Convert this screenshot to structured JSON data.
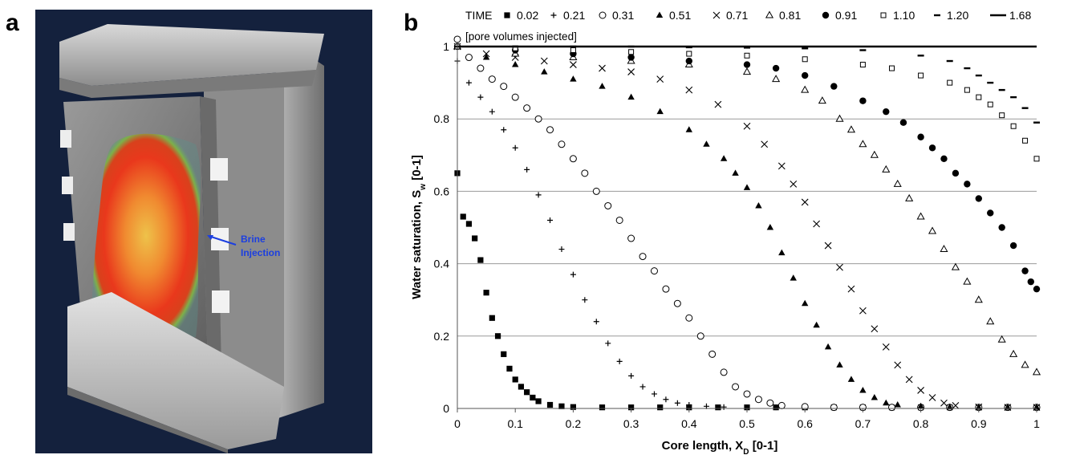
{
  "panel_a": {
    "letter": "a",
    "annotation": [
      "Brine",
      "Injection"
    ],
    "colors": {
      "background": "#14213d",
      "annotation": "#1c3fe0",
      "hot": "#e8321a",
      "warm": "#f2a23a",
      "rim": "#5aa352"
    }
  },
  "panel_b": {
    "letter": "b",
    "legend_title": "TIME",
    "legend_subtitle": "[pore volumes injected]"
  },
  "chart_data": {
    "type": "scatter",
    "xlabel": "Core length, X_D [0-1]",
    "ylabel": "Water saturation, S_w [0-1]",
    "xlim": [
      0,
      1
    ],
    "ylim": [
      0,
      1
    ],
    "xticks": [
      "0",
      "0.1",
      "0.2",
      "0.3",
      "0.4",
      "0.5",
      "0.6",
      "0.7",
      "0.8",
      "0.9",
      "1"
    ],
    "yticks": [
      "0",
      "0.2",
      "0.4",
      "0.6",
      "0.8",
      "1"
    ],
    "grid": "horizontal",
    "legend_position": "top",
    "series": [
      {
        "name": "0.02",
        "marker": "square",
        "points": [
          [
            0,
            0.65
          ],
          [
            0.01,
            0.53
          ],
          [
            0.02,
            0.51
          ],
          [
            0.03,
            0.47
          ],
          [
            0.04,
            0.41
          ],
          [
            0.05,
            0.32
          ],
          [
            0.06,
            0.25
          ],
          [
            0.07,
            0.2
          ],
          [
            0.08,
            0.15
          ],
          [
            0.09,
            0.11
          ],
          [
            0.1,
            0.08
          ],
          [
            0.11,
            0.06
          ],
          [
            0.12,
            0.045
          ],
          [
            0.13,
            0.03
          ],
          [
            0.14,
            0.02
          ],
          [
            0.16,
            0.01
          ],
          [
            0.18,
            0.006
          ],
          [
            0.2,
            0.004
          ],
          [
            0.25,
            0.003
          ],
          [
            0.3,
            0.003
          ],
          [
            0.35,
            0.003
          ],
          [
            0.4,
            0.003
          ],
          [
            0.45,
            0.003
          ],
          [
            0.5,
            0.003
          ],
          [
            0.55,
            0.003
          ],
          [
            0.6,
            0.003
          ],
          [
            0.65,
            0.003
          ],
          [
            0.7,
            0.003
          ],
          [
            0.75,
            0.003
          ],
          [
            0.8,
            0.003
          ],
          [
            0.85,
            0.003
          ],
          [
            0.9,
            0.003
          ],
          [
            0.95,
            0.003
          ],
          [
            1,
            0.003
          ]
        ]
      },
      {
        "name": "0.21",
        "marker": "plus",
        "points": [
          [
            0,
            0.96
          ],
          [
            0.02,
            0.9
          ],
          [
            0.04,
            0.86
          ],
          [
            0.06,
            0.82
          ],
          [
            0.08,
            0.77
          ],
          [
            0.1,
            0.72
          ],
          [
            0.12,
            0.66
          ],
          [
            0.14,
            0.59
          ],
          [
            0.16,
            0.52
          ],
          [
            0.18,
            0.44
          ],
          [
            0.2,
            0.37
          ],
          [
            0.22,
            0.3
          ],
          [
            0.24,
            0.24
          ],
          [
            0.26,
            0.18
          ],
          [
            0.28,
            0.13
          ],
          [
            0.3,
            0.09
          ],
          [
            0.32,
            0.06
          ],
          [
            0.34,
            0.04
          ],
          [
            0.36,
            0.025
          ],
          [
            0.38,
            0.015
          ],
          [
            0.4,
            0.01
          ],
          [
            0.43,
            0.006
          ],
          [
            0.46,
            0.004
          ],
          [
            0.5,
            0.003
          ],
          [
            0.55,
            0.003
          ],
          [
            0.6,
            0.003
          ],
          [
            0.65,
            0.003
          ],
          [
            0.7,
            0.003
          ],
          [
            0.75,
            0.003
          ],
          [
            0.8,
            0.003
          ],
          [
            0.85,
            0.003
          ],
          [
            0.9,
            0.003
          ],
          [
            0.95,
            0.003
          ],
          [
            1,
            0.003
          ]
        ]
      },
      {
        "name": "0.31",
        "marker": "circle-open",
        "points": [
          [
            0,
            1.02
          ],
          [
            0.02,
            0.97
          ],
          [
            0.04,
            0.94
          ],
          [
            0.06,
            0.91
          ],
          [
            0.08,
            0.89
          ],
          [
            0.1,
            0.86
          ],
          [
            0.12,
            0.83
          ],
          [
            0.14,
            0.8
          ],
          [
            0.16,
            0.77
          ],
          [
            0.18,
            0.73
          ],
          [
            0.2,
            0.69
          ],
          [
            0.22,
            0.65
          ],
          [
            0.24,
            0.6
          ],
          [
            0.26,
            0.56
          ],
          [
            0.28,
            0.52
          ],
          [
            0.3,
            0.47
          ],
          [
            0.32,
            0.42
          ],
          [
            0.34,
            0.38
          ],
          [
            0.36,
            0.33
          ],
          [
            0.38,
            0.29
          ],
          [
            0.4,
            0.25
          ],
          [
            0.42,
            0.2
          ],
          [
            0.44,
            0.15
          ],
          [
            0.46,
            0.1
          ],
          [
            0.48,
            0.06
          ],
          [
            0.5,
            0.04
          ],
          [
            0.52,
            0.025
          ],
          [
            0.54,
            0.015
          ],
          [
            0.56,
            0.008
          ],
          [
            0.6,
            0.005
          ],
          [
            0.65,
            0.003
          ],
          [
            0.7,
            0.003
          ],
          [
            0.75,
            0.003
          ],
          [
            0.8,
            0.003
          ],
          [
            0.85,
            0.003
          ],
          [
            0.9,
            0.003
          ],
          [
            0.95,
            0.003
          ],
          [
            1,
            0.003
          ]
        ]
      },
      {
        "name": "0.51",
        "marker": "triangle-filled",
        "points": [
          [
            0,
            1.0
          ],
          [
            0.05,
            0.97
          ],
          [
            0.1,
            0.95
          ],
          [
            0.15,
            0.93
          ],
          [
            0.2,
            0.91
          ],
          [
            0.25,
            0.89
          ],
          [
            0.3,
            0.86
          ],
          [
            0.35,
            0.82
          ],
          [
            0.4,
            0.77
          ],
          [
            0.43,
            0.73
          ],
          [
            0.46,
            0.69
          ],
          [
            0.48,
            0.65
          ],
          [
            0.5,
            0.61
          ],
          [
            0.52,
            0.56
          ],
          [
            0.54,
            0.5
          ],
          [
            0.56,
            0.43
          ],
          [
            0.58,
            0.36
          ],
          [
            0.6,
            0.29
          ],
          [
            0.62,
            0.23
          ],
          [
            0.64,
            0.17
          ],
          [
            0.66,
            0.12
          ],
          [
            0.68,
            0.08
          ],
          [
            0.7,
            0.05
          ],
          [
            0.72,
            0.03
          ],
          [
            0.74,
            0.015
          ],
          [
            0.76,
            0.01
          ],
          [
            0.8,
            0.006
          ],
          [
            0.85,
            0.004
          ],
          [
            0.9,
            0.003
          ],
          [
            0.95,
            0.003
          ],
          [
            1,
            0.003
          ]
        ]
      },
      {
        "name": "0.71",
        "marker": "x",
        "points": [
          [
            0,
            1.0
          ],
          [
            0.05,
            0.98
          ],
          [
            0.1,
            0.97
          ],
          [
            0.15,
            0.96
          ],
          [
            0.2,
            0.95
          ],
          [
            0.25,
            0.94
          ],
          [
            0.3,
            0.93
          ],
          [
            0.35,
            0.91
          ],
          [
            0.4,
            0.88
          ],
          [
            0.45,
            0.84
          ],
          [
            0.5,
            0.78
          ],
          [
            0.53,
            0.73
          ],
          [
            0.56,
            0.67
          ],
          [
            0.58,
            0.62
          ],
          [
            0.6,
            0.57
          ],
          [
            0.62,
            0.51
          ],
          [
            0.64,
            0.45
          ],
          [
            0.66,
            0.39
          ],
          [
            0.68,
            0.33
          ],
          [
            0.7,
            0.27
          ],
          [
            0.72,
            0.22
          ],
          [
            0.74,
            0.17
          ],
          [
            0.76,
            0.12
          ],
          [
            0.78,
            0.08
          ],
          [
            0.8,
            0.05
          ],
          [
            0.82,
            0.03
          ],
          [
            0.84,
            0.015
          ],
          [
            0.86,
            0.008
          ],
          [
            0.9,
            0.004
          ],
          [
            0.95,
            0.003
          ],
          [
            1,
            0.003
          ]
        ]
      },
      {
        "name": "0.81",
        "marker": "triangle-open",
        "points": [
          [
            0,
            1.0
          ],
          [
            0.1,
            0.98
          ],
          [
            0.2,
            0.97
          ],
          [
            0.3,
            0.96
          ],
          [
            0.4,
            0.95
          ],
          [
            0.5,
            0.93
          ],
          [
            0.55,
            0.91
          ],
          [
            0.6,
            0.88
          ],
          [
            0.63,
            0.85
          ],
          [
            0.66,
            0.8
          ],
          [
            0.68,
            0.77
          ],
          [
            0.7,
            0.73
          ],
          [
            0.72,
            0.7
          ],
          [
            0.74,
            0.66
          ],
          [
            0.76,
            0.62
          ],
          [
            0.78,
            0.58
          ],
          [
            0.8,
            0.53
          ],
          [
            0.82,
            0.49
          ],
          [
            0.84,
            0.44
          ],
          [
            0.86,
            0.39
          ],
          [
            0.88,
            0.35
          ],
          [
            0.9,
            0.3
          ],
          [
            0.92,
            0.24
          ],
          [
            0.94,
            0.19
          ],
          [
            0.96,
            0.15
          ],
          [
            0.98,
            0.12
          ],
          [
            1,
            0.1
          ]
        ]
      },
      {
        "name": "0.91",
        "marker": "circle-filled",
        "points": [
          [
            0,
            1.0
          ],
          [
            0.1,
            0.99
          ],
          [
            0.2,
            0.98
          ],
          [
            0.3,
            0.97
          ],
          [
            0.4,
            0.96
          ],
          [
            0.5,
            0.95
          ],
          [
            0.55,
            0.94
          ],
          [
            0.6,
            0.92
          ],
          [
            0.65,
            0.89
          ],
          [
            0.7,
            0.85
          ],
          [
            0.74,
            0.82
          ],
          [
            0.77,
            0.79
          ],
          [
            0.8,
            0.75
          ],
          [
            0.82,
            0.72
          ],
          [
            0.84,
            0.69
          ],
          [
            0.86,
            0.65
          ],
          [
            0.88,
            0.62
          ],
          [
            0.9,
            0.58
          ],
          [
            0.92,
            0.54
          ],
          [
            0.94,
            0.5
          ],
          [
            0.96,
            0.45
          ],
          [
            0.98,
            0.38
          ],
          [
            0.99,
            0.35
          ],
          [
            1,
            0.33
          ]
        ]
      },
      {
        "name": "1.10",
        "marker": "square-open",
        "points": [
          [
            0,
            1.0
          ],
          [
            0.1,
            0.995
          ],
          [
            0.2,
            0.99
          ],
          [
            0.3,
            0.985
          ],
          [
            0.4,
            0.98
          ],
          [
            0.5,
            0.975
          ],
          [
            0.6,
            0.965
          ],
          [
            0.7,
            0.95
          ],
          [
            0.75,
            0.94
          ],
          [
            0.8,
            0.92
          ],
          [
            0.85,
            0.9
          ],
          [
            0.88,
            0.88
          ],
          [
            0.9,
            0.86
          ],
          [
            0.92,
            0.84
          ],
          [
            0.94,
            0.81
          ],
          [
            0.96,
            0.78
          ],
          [
            0.98,
            0.74
          ],
          [
            1,
            0.69
          ]
        ]
      },
      {
        "name": "1.20",
        "marker": "dash",
        "points": [
          [
            0,
            1.0
          ],
          [
            0.1,
            1.0
          ],
          [
            0.2,
            1.0
          ],
          [
            0.3,
            1.0
          ],
          [
            0.4,
            0.998
          ],
          [
            0.5,
            0.997
          ],
          [
            0.6,
            0.995
          ],
          [
            0.7,
            0.99
          ],
          [
            0.8,
            0.975
          ],
          [
            0.85,
            0.96
          ],
          [
            0.88,
            0.94
          ],
          [
            0.9,
            0.92
          ],
          [
            0.92,
            0.9
          ],
          [
            0.94,
            0.88
          ],
          [
            0.96,
            0.86
          ],
          [
            0.98,
            0.83
          ],
          [
            1,
            0.79
          ]
        ]
      },
      {
        "name": "1.68",
        "marker": "line",
        "points": [
          [
            0,
            1.0
          ],
          [
            0.25,
            1.0
          ],
          [
            0.5,
            1.0
          ],
          [
            0.75,
            1.0
          ],
          [
            1,
            1.0
          ]
        ]
      }
    ]
  }
}
